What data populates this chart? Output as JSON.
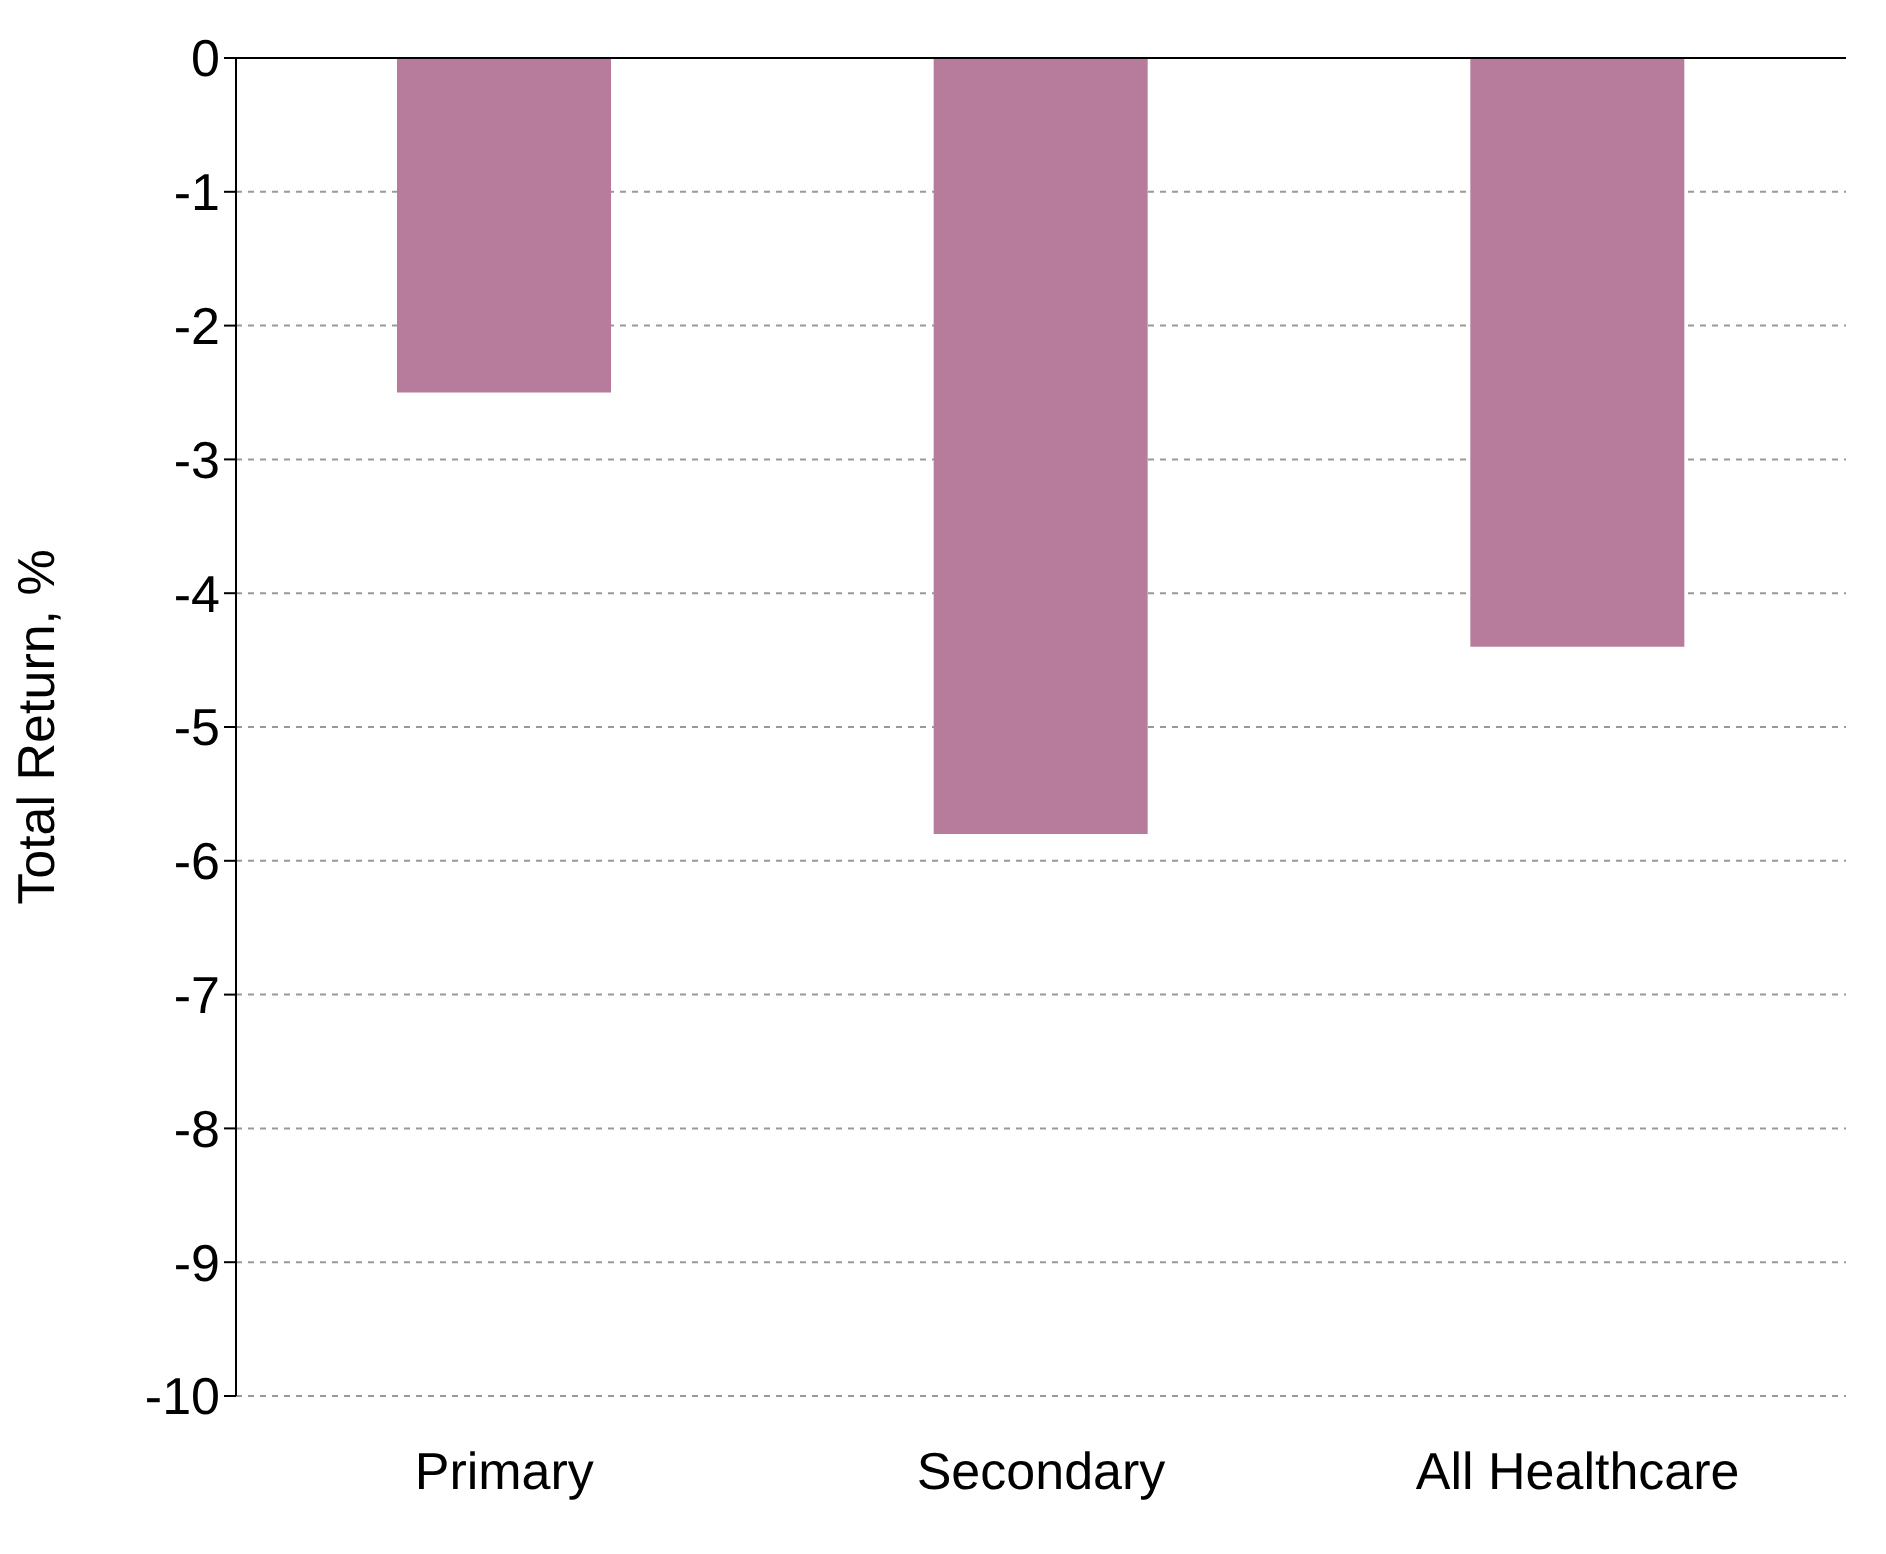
{
  "chart_data": {
    "type": "bar",
    "ylabel": "Total Return, %",
    "categories": [
      "Primary",
      "Secondary",
      "All Healthcare"
    ],
    "values": [
      -2.5,
      -5.8,
      -4.4
    ],
    "color": "#b77b9b",
    "ylim": [
      -10,
      0
    ],
    "yticks": [
      -10,
      -9,
      -8,
      -7,
      -6,
      -5,
      -4,
      -3,
      -2,
      -1,
      0
    ],
    "grid": "y",
    "legend": false
  }
}
